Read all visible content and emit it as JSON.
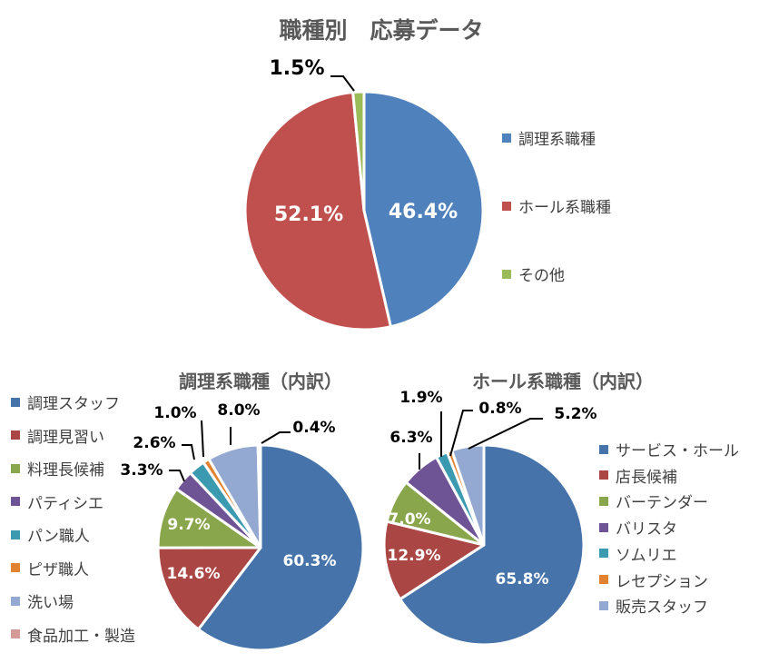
{
  "chart_data": [
    {
      "type": "pie",
      "title": "職種別　応募データ",
      "categories": [
        "調理系職種",
        "ホール系職種",
        "その他"
      ],
      "values": [
        46.4,
        52.1,
        1.5
      ],
      "colors": [
        "#4f81bd",
        "#c0504d",
        "#9bbb59"
      ],
      "legend": "right"
    },
    {
      "type": "pie",
      "title": "調理系職種（内訳）",
      "categories": [
        "調理スタッフ",
        "調理見習い",
        "料理長候補",
        "パティシエ",
        "パン職人",
        "ピザ職人",
        "洗い場",
        "食品加工・製造"
      ],
      "values": [
        60.3,
        14.6,
        9.7,
        3.3,
        2.6,
        1.0,
        8.0,
        0.4
      ],
      "colors": [
        "#4674aa",
        "#aa4644",
        "#8aa64c",
        "#6f5495",
        "#3b99b0",
        "#e0822f",
        "#93a9d1",
        "#d49a98"
      ],
      "legend": "left"
    },
    {
      "type": "pie",
      "title": "ホール系職種（内訳）",
      "categories": [
        "サービス・ホール",
        "店長候補",
        "バーテンダー",
        "バリスタ",
        "ソムリエ",
        "レセプション",
        "販売スタッフ"
      ],
      "values": [
        65.8,
        12.9,
        7.0,
        6.3,
        1.9,
        0.8,
        5.2
      ],
      "colors": [
        "#4674aa",
        "#aa4644",
        "#8aa64c",
        "#6f5495",
        "#3b99b0",
        "#e0822f",
        "#93a9d1"
      ],
      "legend": "right"
    }
  ]
}
